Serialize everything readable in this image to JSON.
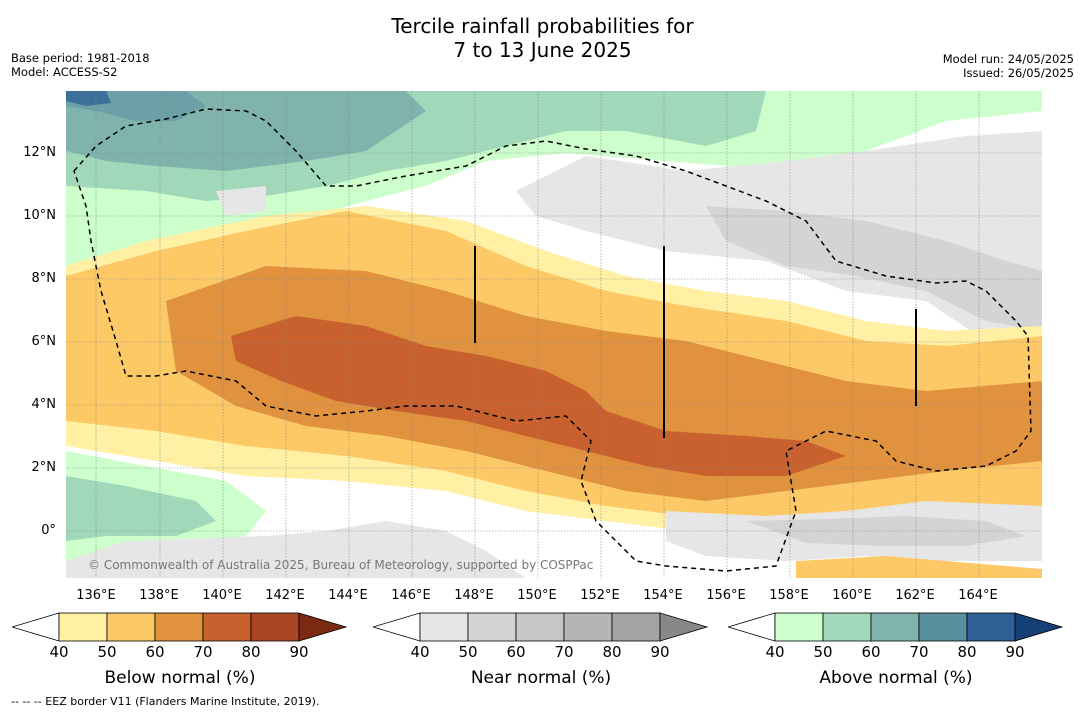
{
  "title": {
    "line1": "Tercile rainfall probabilities for",
    "line2": "7 to 13 June 2025"
  },
  "meta_left": {
    "base_period": "Base period: 1981-2018",
    "model": "Model: ACCESS-S2"
  },
  "meta_right": {
    "model_run": "Model run: 24/05/2025",
    "issued": "Issued: 26/05/2025"
  },
  "map": {
    "lon_labels": [
      "136°E",
      "138°E",
      "140°E",
      "142°E",
      "144°E",
      "146°E",
      "148°E",
      "150°E",
      "152°E",
      "154°E",
      "156°E",
      "158°E",
      "160°E",
      "162°E",
      "164°E"
    ],
    "lat_labels": [
      "12°N",
      "10°N",
      "8°N",
      "6°N",
      "4°N",
      "2°N",
      "0°"
    ],
    "copyright": "© Commonwealth of Australia 2025, Bureau of Meteorology, supported by COSPPac"
  },
  "colorbars": [
    {
      "name": "below",
      "title": "Below normal (%)",
      "ticks": [
        "40",
        "50",
        "60",
        "70",
        "80",
        "90"
      ],
      "colors": [
        "#fff0a3",
        "#fdc966",
        "#e0923f",
        "#c9612f",
        "#a94624",
        "#7d2a15"
      ]
    },
    {
      "name": "near",
      "title": "Near normal (%)",
      "ticks": [
        "40",
        "50",
        "60",
        "70",
        "80",
        "90"
      ],
      "colors": [
        "#e6e6e6",
        "#d4d4d4",
        "#c6c6c6",
        "#b5b5b5",
        "#a3a3a3",
        "#888888"
      ]
    },
    {
      "name": "above",
      "title": "Above normal (%)",
      "ticks": [
        "40",
        "50",
        "60",
        "70",
        "80",
        "90"
      ],
      "colors": [
        "#ccffcc",
        "#a1d8ba",
        "#7fb3ac",
        "#5a8fa0",
        "#2e5f95",
        "#163f78"
      ]
    }
  ],
  "footnote": "--  --  -- EEZ border V11 (Flanders Marine Institute, 2019)."
}
